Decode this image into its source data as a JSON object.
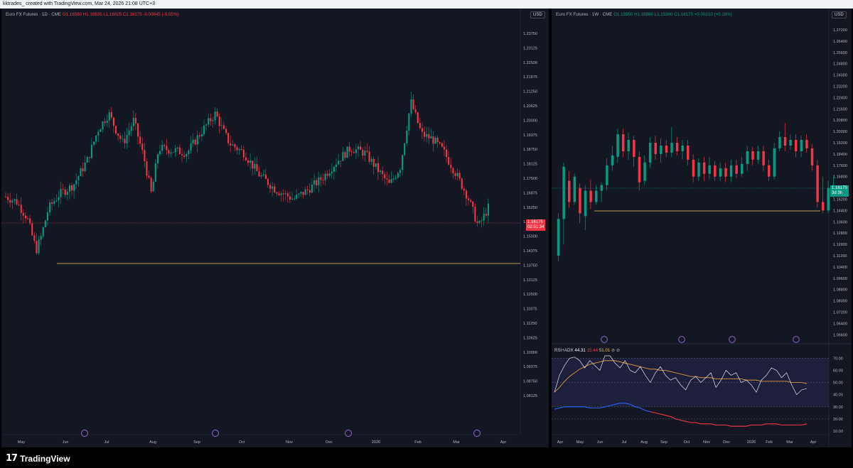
{
  "header": {
    "text": "kktrades_ created with TradingView.com, Mar 24, 2026 21:08 UTC+3"
  },
  "footer": {
    "brand": "TradingView"
  },
  "left": {
    "symbol": "Euro FX Futures · 1D · CME",
    "o": "O1.16580",
    "h": "H1.16635",
    "l": "L1.16025",
    "c": "C1.16175",
    "chg": "-0.00645 (-0.55%)",
    "currency": "USD",
    "price": "1.16175",
    "countdown": "02:51:34",
    "y_ticks": [
      "1.23750",
      "1.23125",
      "1.22500",
      "1.21875",
      "1.21250",
      "1.20625",
      "1.20000",
      "1.19375",
      "1.18750",
      "1.18125",
      "1.17500",
      "1.16875",
      "1.16250",
      "1.15625",
      "1.15000",
      "1.14375",
      "1.13750",
      "1.13125",
      "1.12500",
      "1.11875",
      "1.11250",
      "1.10625",
      "1.10000",
      "1.09375",
      "1.08750",
      "1.08125"
    ],
    "x_ticks": [
      "May",
      "Jun",
      "Jul",
      "Aug",
      "Sep",
      "Oct",
      "Nov",
      "Dec",
      "2026",
      "Feb",
      "Mar",
      "Apr"
    ],
    "colors": {
      "up": "#089981",
      "down": "#f23645",
      "hline": "#f0c75e",
      "bg": "#131722"
    }
  },
  "right": {
    "symbol": "Euro FX Futures · 1W · CME",
    "o": "O1.15950",
    "h": "H1.16860",
    "l": "L1.15300",
    "c": "C1.16175",
    "chg": "+0.00210 (+0.18%)",
    "currency": "USD",
    "price": "1.16175",
    "countdown": "3d 3h",
    "y_ticks": [
      "1.27200",
      "1.26400",
      "1.25600",
      "1.24800",
      "1.24000",
      "1.23200",
      "1.22400",
      "1.21600",
      "1.20800",
      "1.20000",
      "1.19200",
      "1.18400",
      "1.17600",
      "1.16800",
      "1.16000",
      "1.15200",
      "1.14400",
      "1.13600",
      "1.12800",
      "1.12000",
      "1.11200",
      "1.10400",
      "1.09600",
      "1.08800",
      "1.08000",
      "1.07200",
      "1.06400",
      "1.05600"
    ],
    "x_ticks": [
      "Apr",
      "May",
      "Jun",
      "Jul",
      "Aug",
      "Sep",
      "Oct",
      "Nov",
      "Dec",
      "2026",
      "Feb",
      "Mar",
      "Apr"
    ],
    "indicator": {
      "name": "RSI+ADX",
      "v1": "44.31",
      "v2": "15.44",
      "v3": "51.01",
      "y_ticks": [
        "70.00",
        "60.00",
        "50.00",
        "40.00",
        "30.00",
        "20.00",
        "10.00"
      ]
    }
  }
}
